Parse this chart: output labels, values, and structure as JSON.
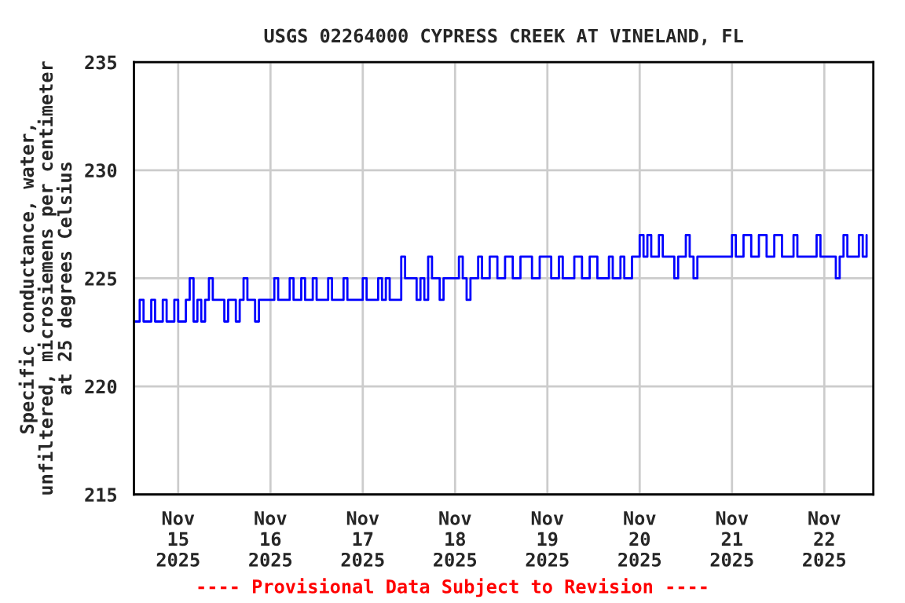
{
  "chart_data": {
    "type": "step",
    "title": "USGS 02264000 CYPRESS CREEK AT VINELAND, FL",
    "ylabel": "Specific conductance, water,\nunfiltered, microsiemens per centimeter\nat 25 degrees Celsius",
    "annotations": [
      "---- Provisional Data Subject to Revision ----"
    ],
    "x": [
      "2025-11-14T12:30",
      "2025-11-14T14:00",
      "2025-11-14T15:00",
      "2025-11-14T17:00",
      "2025-11-14T18:00",
      "2025-11-14T20:00",
      "2025-11-14T21:00",
      "2025-11-14T23:00",
      "2025-11-15T00:00",
      "2025-11-15T02:00",
      "2025-11-15T03:00",
      "2025-11-15T04:00",
      "2025-11-15T05:00",
      "2025-11-15T06:00",
      "2025-11-15T07:00",
      "2025-11-15T08:00",
      "2025-11-15T09:00",
      "2025-11-15T12:00",
      "2025-11-15T13:00",
      "2025-11-15T15:00",
      "2025-11-15T16:00",
      "2025-11-15T17:00",
      "2025-11-15T18:00",
      "2025-11-15T20:00",
      "2025-11-15T21:00",
      "2025-11-16T01:00",
      "2025-11-16T02:00",
      "2025-11-16T05:00",
      "2025-11-16T06:00",
      "2025-11-16T08:00",
      "2025-11-16T09:00",
      "2025-11-16T11:00",
      "2025-11-16T12:00",
      "2025-11-16T15:00",
      "2025-11-16T16:00",
      "2025-11-16T19:00",
      "2025-11-16T20:00",
      "2025-11-17T00:00",
      "2025-11-17T01:00",
      "2025-11-17T04:00",
      "2025-11-17T05:00",
      "2025-11-17T06:00",
      "2025-11-17T07:00",
      "2025-11-17T10:00",
      "2025-11-17T11:00",
      "2025-11-17T14:00",
      "2025-11-17T15:00",
      "2025-11-17T16:00",
      "2025-11-17T17:00",
      "2025-11-17T18:00",
      "2025-11-17T20:00",
      "2025-11-17T21:00",
      "2025-11-18T01:00",
      "2025-11-18T02:00",
      "2025-11-18T03:00",
      "2025-11-18T04:00",
      "2025-11-18T06:00",
      "2025-11-18T07:00",
      "2025-11-18T09:00",
      "2025-11-18T11:00",
      "2025-11-18T13:00",
      "2025-11-18T15:00",
      "2025-11-18T17:00",
      "2025-11-18T20:00",
      "2025-11-18T22:00",
      "2025-11-19T01:00",
      "2025-11-19T03:00",
      "2025-11-19T04:00",
      "2025-11-19T07:00",
      "2025-11-19T09:00",
      "2025-11-19T11:00",
      "2025-11-19T13:00",
      "2025-11-19T16:00",
      "2025-11-19T17:00",
      "2025-11-19T19:00",
      "2025-11-19T20:00",
      "2025-11-19T22:00",
      "2025-11-20T00:00",
      "2025-11-20T01:00",
      "2025-11-20T02:00",
      "2025-11-20T03:00",
      "2025-11-20T05:00",
      "2025-11-20T06:00",
      "2025-11-20T09:00",
      "2025-11-20T10:00",
      "2025-11-20T12:00",
      "2025-11-20T13:00",
      "2025-11-20T14:00",
      "2025-11-20T15:00",
      "2025-11-21T00:00",
      "2025-11-21T01:00",
      "2025-11-21T03:00",
      "2025-11-21T05:00",
      "2025-11-21T07:00",
      "2025-11-21T09:00",
      "2025-11-21T11:00",
      "2025-11-21T13:00",
      "2025-11-21T16:00",
      "2025-11-21T17:00",
      "2025-11-21T22:00",
      "2025-11-21T23:00",
      "2025-11-22T03:00",
      "2025-11-22T04:00",
      "2025-11-22T05:00",
      "2025-11-22T06:00",
      "2025-11-22T09:00",
      "2025-11-22T10:00",
      "2025-11-22T11:00"
    ],
    "series": [
      {
        "color": "#0000ff",
        "values": [
          223,
          224,
          223,
          224,
          223,
          224,
          223,
          224,
          223,
          224,
          225,
          223,
          224,
          223,
          224,
          225,
          224,
          223,
          224,
          223,
          224,
          225,
          224,
          223,
          224,
          225,
          224,
          225,
          224,
          225,
          224,
          225,
          224,
          225,
          224,
          225,
          224,
          225,
          224,
          225,
          224,
          225,
          224,
          226,
          225,
          224,
          225,
          224,
          226,
          225,
          224,
          225,
          226,
          225,
          224,
          225,
          226,
          225,
          226,
          225,
          226,
          225,
          226,
          225,
          226,
          225,
          226,
          225,
          226,
          225,
          226,
          225,
          226,
          225,
          226,
          225,
          226,
          227,
          226,
          227,
          226,
          227,
          226,
          225,
          226,
          227,
          226,
          225,
          226,
          227,
          226,
          227,
          226,
          227,
          226,
          227,
          226,
          227,
          226,
          227,
          226,
          225,
          226,
          227,
          226,
          227,
          226,
          227
        ]
      }
    ],
    "xlim": [
      "2025-11-14T12:30",
      "2025-11-22T12:45"
    ],
    "xticks": [
      {
        "value": "2025-11-15",
        "label": "Nov\n15\n2025"
      },
      {
        "value": "2025-11-16",
        "label": "Nov\n16\n2025"
      },
      {
        "value": "2025-11-17",
        "label": "Nov\n17\n2025"
      },
      {
        "value": "2025-11-18",
        "label": "Nov\n18\n2025"
      },
      {
        "value": "2025-11-19",
        "label": "Nov\n19\n2025"
      },
      {
        "value": "2025-11-20",
        "label": "Nov\n20\n2025"
      },
      {
        "value": "2025-11-21",
        "label": "Nov\n21\n2025"
      },
      {
        "value": "2025-11-22",
        "label": "Nov\n22\n2025"
      }
    ],
    "ylim": [
      215,
      235
    ],
    "yticks": [
      215,
      220,
      225,
      230,
      235
    ],
    "grid": true,
    "legend": false
  }
}
